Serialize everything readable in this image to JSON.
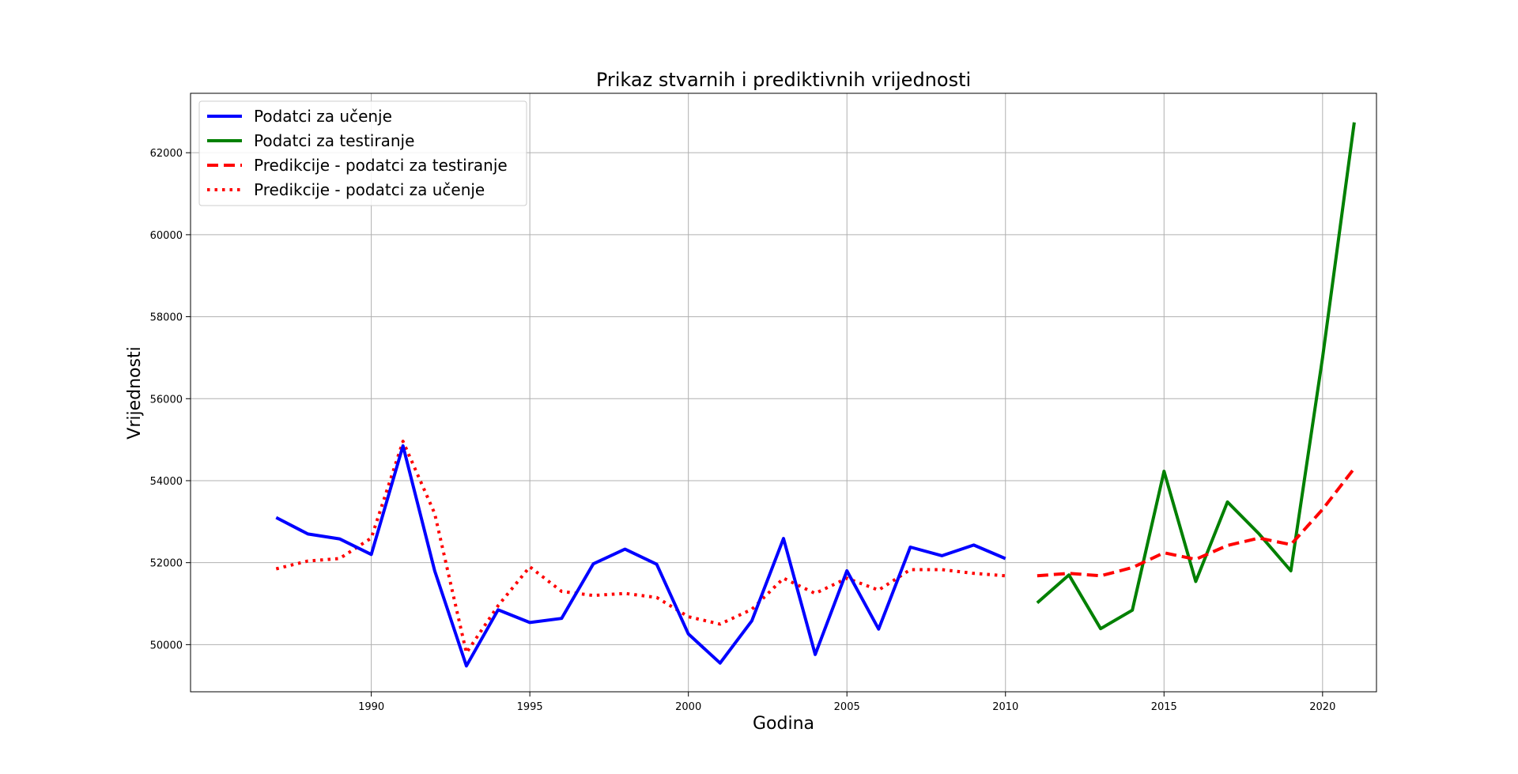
{
  "chart_data": {
    "type": "line",
    "title": "Prikaz stvarnih i prediktivnih vrijednosti",
    "xlabel": "Godina",
    "ylabel": "Vrijednosti",
    "xlim": [
      1984.3,
      2021.7
    ],
    "ylim": [
      48850,
      63450
    ],
    "xticks": [
      1990,
      1995,
      2000,
      2005,
      2010,
      2015,
      2020
    ],
    "yticks": [
      50000,
      52000,
      54000,
      56000,
      58000,
      60000,
      62000
    ],
    "grid": true,
    "legend_position": "top-left",
    "series": [
      {
        "name": "Podatci za učenje",
        "color": "#0000ff",
        "style": "solid",
        "x": [
          1987,
          1988,
          1989,
          1990,
          1991,
          1992,
          1993,
          1994,
          1995,
          1996,
          1997,
          1998,
          1999,
          2000,
          2001,
          2002,
          2003,
          2004,
          2005,
          2006,
          2007,
          2008,
          2009,
          2010
        ],
        "y": [
          53100,
          52700,
          52580,
          52200,
          54850,
          51800,
          49480,
          50850,
          50540,
          50640,
          51970,
          52330,
          51960,
          50260,
          49550,
          50580,
          52590,
          49760,
          51800,
          50380,
          52380,
          52170,
          52430,
          52100
        ]
      },
      {
        "name": "Podatci za testiranje",
        "color": "#008000",
        "style": "solid",
        "x": [
          2011,
          2012,
          2013,
          2014,
          2015,
          2016,
          2017,
          2018,
          2019,
          2020,
          2021
        ],
        "y": [
          51020,
          51700,
          50390,
          50840,
          54230,
          51540,
          53480,
          52700,
          51800,
          57000,
          62740
        ]
      },
      {
        "name": "Predikcije - podatci za testiranje",
        "color": "#ff0000",
        "style": "dashed",
        "x": [
          2011,
          2012,
          2013,
          2014,
          2015,
          2016,
          2017,
          2018,
          2019,
          2020,
          2021
        ],
        "y": [
          51680,
          51740,
          51680,
          51880,
          52240,
          52080,
          52420,
          52600,
          52440,
          53300,
          54300
        ]
      },
      {
        "name": "Predikcije - podatci za učenje",
        "color": "#ff0000",
        "style": "dotted",
        "x": [
          1987,
          1988,
          1989,
          1990,
          1991,
          1992,
          1993,
          1994,
          1995,
          1996,
          1997,
          1998,
          1999,
          2000,
          2001,
          2002,
          2003,
          2004,
          2005,
          2006,
          2007,
          2008,
          2009,
          2010
        ],
        "y": [
          51850,
          52040,
          52100,
          52600,
          54960,
          53200,
          49800,
          50950,
          51900,
          51300,
          51200,
          51250,
          51150,
          50680,
          50500,
          50860,
          51620,
          51250,
          51620,
          51330,
          51830,
          51830,
          51740,
          51680
        ]
      }
    ]
  }
}
